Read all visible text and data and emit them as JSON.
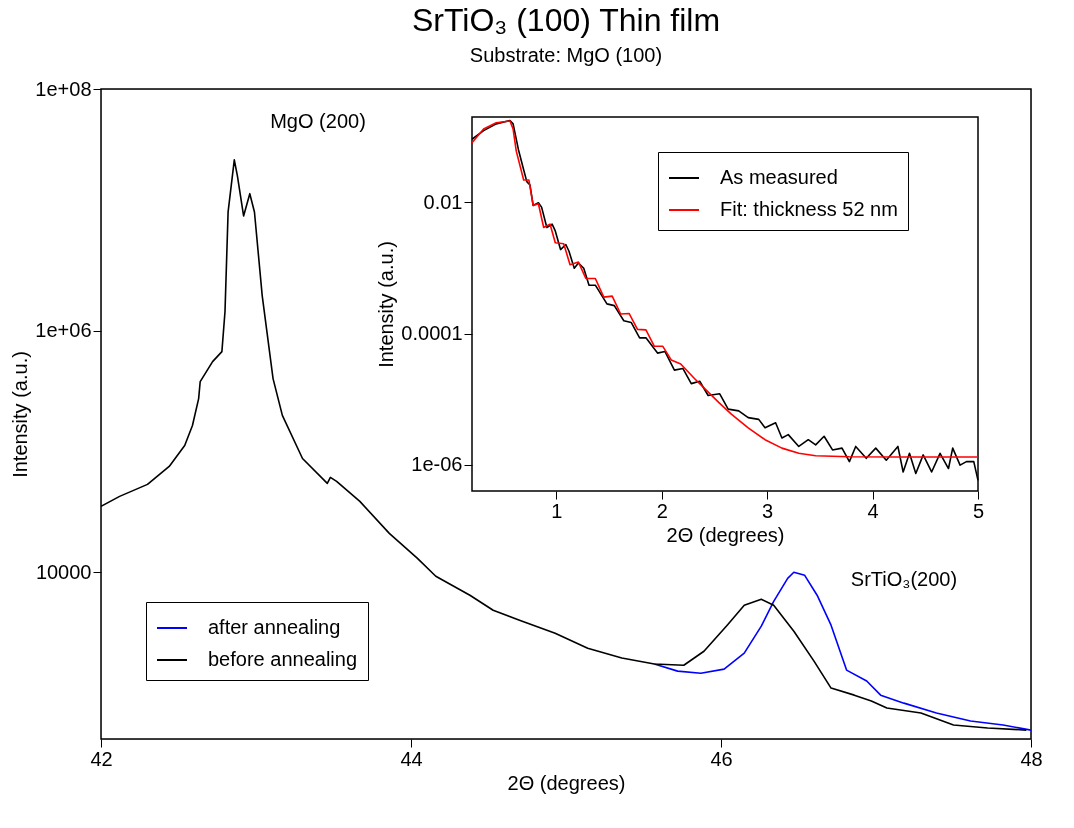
{
  "chart_data": [
    {
      "type": "line",
      "title": "SrTiO₃ (100) Thin film",
      "subtitle": "Substrate: MgO (100)",
      "xlabel": "2Θ (degrees)",
      "ylabel": "Intensity (a.u.)",
      "xlim": [
        42,
        48
      ],
      "xticks": [
        42,
        44,
        46,
        48
      ],
      "ylim": [
        417,
        100000000
      ],
      "yticks": [
        {
          "value": 100000000,
          "label": "1e+08"
        },
        {
          "value": 1000000,
          "label": "1e+06"
        },
        10000
      ],
      "log": true,
      "grid": false,
      "legend": "bottom left",
      "marker": "none",
      "line_style": "solid",
      "annotations": [
        "MgO (200)",
        "SrTiO₃(200)"
      ],
      "series": [
        {
          "name": "after annealing",
          "color": "#0000ff",
          "x": [
            45.57,
            45.72,
            45.87,
            46.02,
            46.15,
            46.26,
            46.34,
            46.43,
            46.47,
            46.54,
            46.62,
            46.71,
            46.81,
            46.94,
            47.03,
            47.18,
            47.39,
            47.61,
            47.82,
            48.0
          ],
          "values": [
            1740,
            1520,
            1460,
            1580,
            2140,
            3580,
            5750,
            8910,
            10000,
            9440,
            6460,
            3650,
            1550,
            1260,
            962,
            826,
            684,
            587,
            545,
            494
          ]
        },
        {
          "name": "before annealing",
          "color": "#000000",
          "x": [
            42.0,
            42.12,
            42.3,
            42.44,
            42.54,
            42.59,
            42.63,
            42.64,
            42.68,
            42.72,
            42.78,
            42.8,
            42.82,
            42.86,
            42.88,
            42.92,
            42.96,
            42.99,
            43.04,
            43.11,
            43.17,
            43.3,
            43.46,
            43.48,
            43.52,
            43.67,
            43.86,
            44.04,
            44.16,
            44.38,
            44.53,
            44.7,
            44.93,
            45.14,
            45.36,
            45.57,
            45.76,
            45.89,
            46.04,
            46.15,
            46.26,
            46.34,
            46.47,
            46.6,
            46.71,
            46.86,
            46.97,
            47.07,
            47.29,
            47.5,
            47.72,
            47.97
          ],
          "values": [
            35100,
            42500,
            53400,
            75200,
            112000,
            164000,
            274000,
            379000,
            458000,
            554000,
            670000,
            1440000,
            9600000,
            25900000,
            19100000,
            8900000,
            13600000,
            9600000,
            1950000,
            401000,
            199000,
            87500,
            54400,
            61000,
            56500,
            38600,
            21000,
            13100,
            9270,
            6460,
            4850,
            4010,
            3130,
            2350,
            1950,
            1740,
            1700,
            2220,
            3650,
            5330,
            5980,
            5330,
            3250,
            1840,
            1100,
            962,
            859,
            752,
            684,
            545,
            514,
            494
          ]
        }
      ]
    },
    {
      "type": "line",
      "xlabel": "2Θ (degrees)",
      "ylabel": "Intensity (a.u.)",
      "xlim": [
        0.2,
        5
      ],
      "xticks": [
        1,
        2,
        3,
        4,
        5
      ],
      "ylim": [
        4e-07,
        0.2
      ],
      "yticks": [
        0.01,
        0.0001,
        {
          "value": 1e-06,
          "label": "1e-06"
        }
      ],
      "log": true,
      "grid": false,
      "legend": "top right",
      "marker": "none",
      "line_style": "solid",
      "series": [
        {
          "name": "As measured",
          "color": "#000000",
          "x": [
            0.2,
            0.31,
            0.43,
            0.56,
            0.59,
            0.64,
            0.69,
            0.72,
            0.75,
            0.78,
            0.83,
            0.86,
            0.91,
            0.96,
            0.99,
            1.04,
            1.09,
            1.12,
            1.17,
            1.21,
            1.26,
            1.31,
            1.37,
            1.48,
            1.55,
            1.64,
            1.71,
            1.79,
            1.85,
            1.96,
            2.03,
            2.12,
            2.2,
            2.28,
            2.36,
            2.44,
            2.55,
            2.63,
            2.73,
            2.82,
            2.92,
            2.98,
            3.08,
            3.14,
            3.2,
            3.3,
            3.39,
            3.46,
            3.54,
            3.62,
            3.71,
            3.78,
            3.84,
            3.94,
            4.03,
            4.13,
            4.24,
            4.29,
            4.35,
            4.41,
            4.48,
            4.56,
            4.64,
            4.72,
            4.76,
            4.83,
            4.89,
            4.96,
            5.0
          ],
          "values": [
            0.0916,
            0.124,
            0.157,
            0.177,
            0.157,
            0.0641,
            0.0314,
            0.0207,
            0.0184,
            0.00898,
            0.00988,
            0.00847,
            0.00414,
            0.00467,
            0.00367,
            0.00191,
            0.00228,
            0.0018,
            0.000991,
            0.00119,
            0.000991,
            0.000547,
            0.000547,
            0.000284,
            0.000267,
            0.000157,
            0.000148,
            8.63e-05,
            8.63e-05,
            5.05e-05,
            5.36e-05,
            2.78e-05,
            2.95e-05,
            1.73e-05,
            1.88e-05,
            1.14e-05,
            1.21e-05,
            7.07e-06,
            6.66e-06,
            5.25e-06,
            4.94e-06,
            3.67e-06,
            4.39e-06,
            2.57e-06,
            2.89e-06,
            1.91e-06,
            2.42e-06,
            2.02e-06,
            2.73e-06,
            1.69e-06,
            1.8e-06,
            1.12e-06,
            1.91e-06,
            1.26e-06,
            1.8e-06,
            1.18e-06,
            1.91e-06,
            7.8e-07,
            1.5e-06,
            7.4e-07,
            1.42e-06,
            7.8e-07,
            1.5e-06,
            8.8e-07,
            1.8e-06,
            9.9e-07,
            1.12e-06,
            1.12e-06,
            5.8e-07
          ]
        },
        {
          "name": "Fit: thickness 52 nm",
          "color": "#ff0000",
          "x": [
            0.2,
            0.31,
            0.43,
            0.56,
            0.59,
            0.62,
            0.69,
            0.74,
            0.78,
            0.83,
            0.88,
            0.94,
            0.99,
            1.07,
            1.13,
            1.21,
            1.28,
            1.37,
            1.45,
            1.53,
            1.61,
            1.69,
            1.77,
            1.85,
            1.93,
            2.01,
            2.09,
            2.18,
            2.31,
            2.41,
            2.54,
            2.66,
            2.82,
            2.98,
            3.14,
            3.3,
            3.46,
            3.78,
            4.25,
            5.0
          ],
          "values": [
            0.0812,
            0.131,
            0.163,
            0.174,
            0.131,
            0.0604,
            0.0219,
            0.0219,
            0.00898,
            0.00953,
            0.00414,
            0.00467,
            0.00242,
            0.00234,
            0.00112,
            0.00123,
            0.000693,
            0.000693,
            0.00036,
            0.000373,
            0.000199,
            0.000203,
            0.000116,
            0.000114,
            6.41e-05,
            6.41e-05,
            3.98e-05,
            3.45e-05,
            2.07e-05,
            1.44e-05,
            8.97e-06,
            5.92e-06,
            3.67e-06,
            2.42e-06,
            1.8e-06,
            1.5e-06,
            1.38e-06,
            1.33e-06,
            1.32e-06,
            1.32e-06
          ]
        }
      ]
    }
  ]
}
